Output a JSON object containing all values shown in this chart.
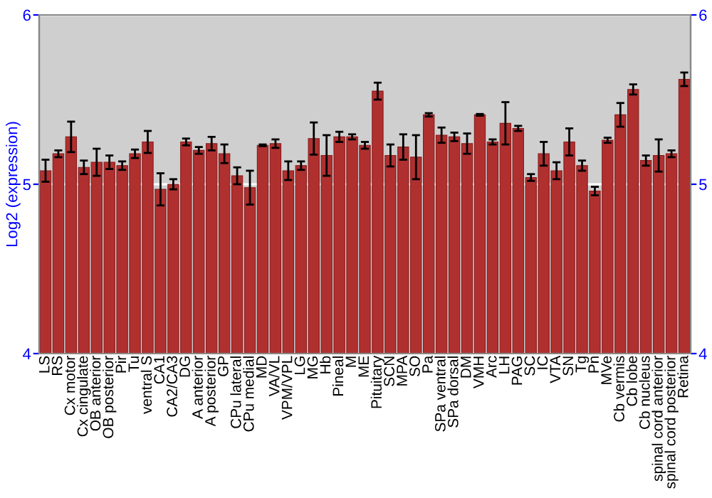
{
  "chart_data": {
    "type": "bar",
    "ylabel": "Log2 (expression)",
    "categories": [
      "LS",
      "RS",
      "Cx motor",
      "Cx cingulate",
      "OB anterior",
      "OB posterior",
      "Pir",
      "Tu",
      "ventral S",
      "CA1",
      "CA2/CA3",
      "DG",
      "A anterior",
      "A posterior",
      "GP",
      "CPu lateral",
      "CPu medial",
      "MD",
      "VA/VL",
      "VPM/VPL",
      "LG",
      "MG",
      "Hb",
      "Pineal",
      "M",
      "ME",
      "Pituitary",
      "SCN",
      "MPA",
      "SO",
      "Pa",
      "SPa ventral",
      "SPa dorsal",
      "DM",
      "VMH",
      "Arc",
      "LH",
      "PAG",
      "SC",
      "IC",
      "VTA",
      "SN",
      "Tg",
      "Pn",
      "MVe",
      "Cb vermis",
      "Cb lobe",
      "Cb nucleus",
      "spinal cord anterior",
      "spinal cord posterior",
      "Retina"
    ],
    "series": [
      {
        "color": "#b03030",
        "values": [
          5.08,
          5.18,
          5.28,
          5.1,
          5.13,
          5.13,
          5.11,
          5.18,
          5.25,
          4.97,
          5.0,
          5.25,
          5.2,
          5.24,
          5.18,
          5.05,
          4.98,
          5.23,
          5.24,
          5.08,
          5.11,
          5.27,
          5.17,
          5.28,
          5.28,
          5.23,
          5.55,
          5.17,
          5.22,
          5.16,
          5.41,
          5.29,
          5.28,
          5.24,
          5.41,
          5.25,
          5.36,
          5.33,
          5.04,
          5.18,
          5.08,
          5.25,
          5.11,
          4.96,
          5.26,
          5.41,
          5.56,
          5.14,
          5.17,
          5.18,
          5.62
        ],
        "errors": [
          0.065,
          0.02,
          0.09,
          0.04,
          0.08,
          0.04,
          0.025,
          0.025,
          0.065,
          0.095,
          0.03,
          0.02,
          0.02,
          0.04,
          0.055,
          0.05,
          0.1,
          0.005,
          0.025,
          0.055,
          0.025,
          0.095,
          0.12,
          0.03,
          0.015,
          0.02,
          0.05,
          0.065,
          0.075,
          0.13,
          0.01,
          0.045,
          0.025,
          0.06,
          0.005,
          0.015,
          0.125,
          0.015,
          0.02,
          0.07,
          0.05,
          0.08,
          0.03,
          0.025,
          0.015,
          0.07,
          0.03,
          0.03,
          0.095,
          0.02,
          0.04
        ]
      }
    ],
    "ylim": [
      4,
      6
    ],
    "yticks": [
      4,
      5,
      6
    ],
    "y2lim": [
      4,
      6
    ],
    "y2ticks": [
      4,
      5,
      6
    ],
    "grid": "y",
    "legend": false
  }
}
